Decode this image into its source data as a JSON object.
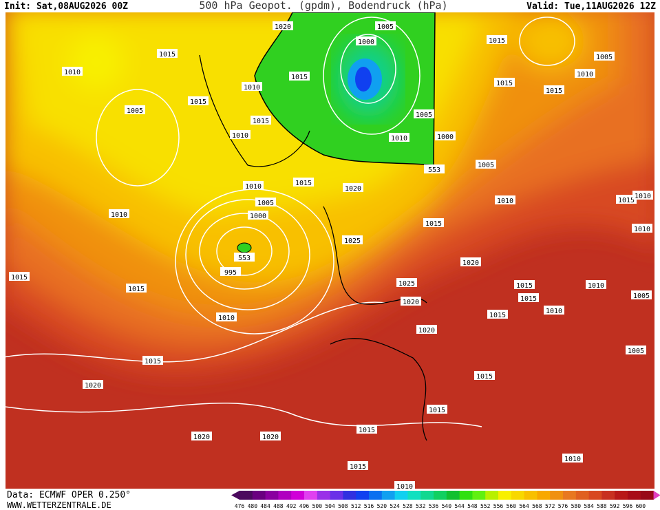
{
  "header": {
    "init": "Init: Sat,08AUG2026 00Z",
    "title": "500 hPa Geopot. (gpdm), Bodendruck (hPa)",
    "valid": "Valid: Tue,11AUG2026 12Z"
  },
  "footer": {
    "source": "Data: ECMWF OPER 0.250°",
    "site": "WWW.WETTERZENTRALE.DE"
  },
  "colorbar": {
    "levels": [
      476,
      480,
      484,
      488,
      492,
      496,
      500,
      504,
      508,
      512,
      516,
      520,
      524,
      528,
      532,
      536,
      540,
      544,
      548,
      552,
      556,
      560,
      564,
      568,
      572,
      576,
      580,
      584,
      588,
      592,
      596,
      600
    ],
    "colors": [
      "#4b0a5e",
      "#6a0080",
      "#8a00a0",
      "#b000c0",
      "#d000d8",
      "#e040f0",
      "#9a30e8",
      "#6a30e8",
      "#3030e0",
      "#1040f0",
      "#0a70f0",
      "#10a0f0",
      "#10d0f0",
      "#10e0c0",
      "#10d890",
      "#10d060",
      "#10c030",
      "#30e010",
      "#60f010",
      "#b8f000",
      "#f8f000",
      "#f8d800",
      "#f8c000",
      "#f8a800",
      "#f09010",
      "#e87820",
      "#e06020",
      "#d84820",
      "#c83020",
      "#b81818",
      "#a80c18",
      "#980818"
    ]
  },
  "isobar_labels": [
    "1020",
    "1005",
    "1000",
    "1015",
    "1015",
    "1005",
    "1010",
    "1015",
    "1010",
    "1010",
    "1015",
    "1015",
    "1015",
    "1005",
    "1005",
    "1015",
    "1010",
    "1010",
    "1000",
    "1005",
    "553",
    "1015",
    "1010",
    "1020",
    "1010",
    "1005",
    "1015",
    "1010",
    "1010",
    "1000",
    "1015",
    "1010",
    "1025",
    "553",
    "995",
    "1020",
    "1015",
    "1025",
    "1015",
    "1010",
    "1015",
    "1015",
    "1005",
    "1020",
    "1010",
    "1015",
    "1010",
    "1020",
    "1005",
    "1015",
    "1015",
    "1020",
    "1015",
    "1015",
    "1020",
    "1020",
    "1010",
    "1015",
    "1010"
  ]
}
